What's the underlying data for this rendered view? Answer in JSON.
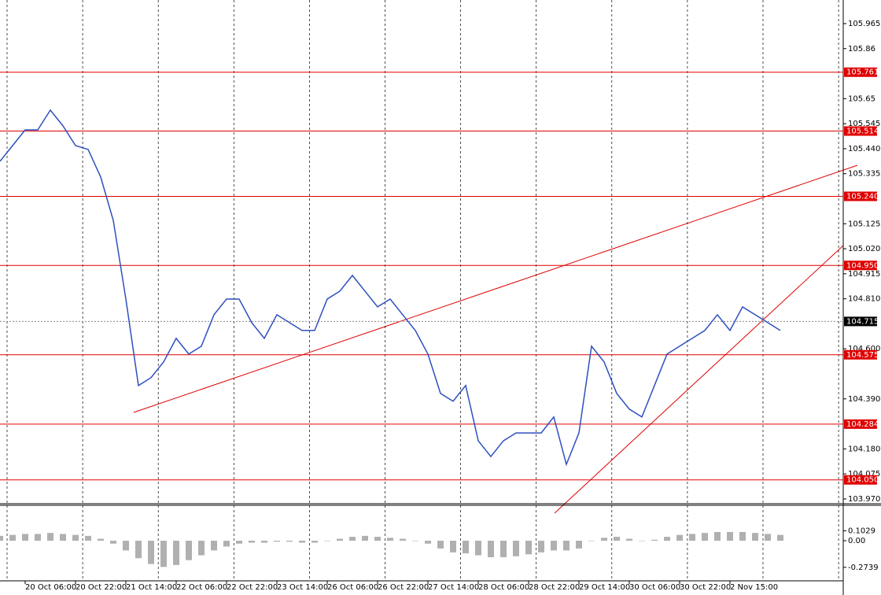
{
  "chart_data": [
    {
      "type": "line",
      "categories": [
        null,
        null,
        "20 Oct 06:00",
        null,
        null,
        null,
        "20 Oct 22:00",
        null,
        null,
        null,
        "21 Oct 14:00",
        null,
        null,
        null,
        "22 Oct 06:00",
        null,
        null,
        null,
        "22 Oct 22:00",
        null,
        null,
        null,
        "23 Oct 14:00",
        null,
        null,
        null,
        "26 Oct 06:00",
        null,
        null,
        null,
        "26 Oct 22:00",
        null,
        null,
        null,
        "27 Oct 14:00",
        null,
        null,
        null,
        "28 Oct 06:00",
        null,
        null,
        null,
        "28 Oct 22:00",
        null,
        null,
        null,
        "29 Oct 14:00",
        null,
        null,
        null,
        "30 Oct 06:00",
        null,
        null,
        null,
        "30 Oct 22:00",
        null,
        null,
        null,
        "2 Nov 15:00",
        null,
        null,
        null,
        null
      ],
      "series": [
        {
          "color": "#2e4fbf",
          "values": [
            105.387,
            105.453,
            105.519,
            105.519,
            105.602,
            105.536,
            105.453,
            105.437,
            105.321,
            105.139,
            104.809,
            104.446,
            104.479,
            104.545,
            104.644,
            104.578,
            104.611,
            104.743,
            104.809,
            104.809,
            104.71,
            104.644,
            104.743,
            104.71,
            104.677,
            104.677,
            104.809,
            104.842,
            104.908,
            104.842,
            104.776,
            104.809,
            104.743,
            104.677,
            104.578,
            104.413,
            104.38,
            104.446,
            104.214,
            104.148,
            104.214,
            104.247,
            104.247,
            104.247,
            104.314,
            104.115,
            104.247,
            104.611,
            104.545,
            104.413,
            104.347,
            104.314,
            104.446,
            104.578,
            104.611,
            104.644,
            104.677,
            104.743,
            104.677,
            104.776,
            104.743,
            104.71,
            104.677
          ]
        }
      ],
      "ylim": [
        103.95,
        106.064
      ],
      "yticks": [
        105.965,
        105.86,
        105.65,
        105.545,
        {
          "value": 105.44,
          "label": "105.440"
        },
        105.335,
        105.125,
        {
          "value": 105.02,
          "label": "105.020"
        },
        104.915,
        {
          "value": 104.81,
          "label": "104.810"
        },
        {
          "value": 104.6,
          "label": "104.600"
        },
        {
          "value": 104.39,
          "label": "104.390"
        },
        {
          "value": 104.18,
          "label": "104.180"
        },
        104.075,
        {
          "value": 103.97,
          "label": "103.970"
        }
      ],
      "levels": [
        105.761,
        105.514,
        {
          "value": 105.24,
          "label": "105.240"
        },
        {
          "value": 104.95,
          "label": "104.950"
        },
        104.575,
        104.284,
        {
          "value": 104.05,
          "label": "104.050"
        }
      ],
      "level_color": "#e00000",
      "last_price": 104.715,
      "grid": true
    },
    {
      "type": "bar",
      "color": "#b0b0b0",
      "values": [
        0.05,
        0.06,
        0.07,
        0.07,
        0.08,
        0.07,
        0.06,
        0.05,
        0.02,
        -0.03,
        -0.1,
        -0.18,
        -0.24,
        -0.27,
        -0.25,
        -0.2,
        -0.15,
        -0.1,
        -0.06,
        -0.03,
        -0.02,
        -0.02,
        -0.01,
        -0.01,
        -0.02,
        -0.02,
        0.0,
        0.02,
        0.04,
        0.05,
        0.04,
        0.03,
        0.02,
        0.0,
        -0.03,
        -0.08,
        -0.12,
        -0.13,
        -0.15,
        -0.17,
        -0.17,
        -0.16,
        -0.14,
        -0.12,
        -0.1,
        -0.1,
        -0.08,
        0.0,
        0.03,
        0.04,
        0.02,
        0.0,
        0.01,
        0.04,
        0.06,
        0.07,
        0.08,
        0.09,
        0.09,
        0.09,
        0.08,
        0.07,
        0.06
      ],
      "ylim": [
        -0.413,
        0.365
      ],
      "yticks": [
        0.1029,
        {
          "value": 0,
          "label": "0.00"
        },
        -0.2739
      ]
    }
  ]
}
